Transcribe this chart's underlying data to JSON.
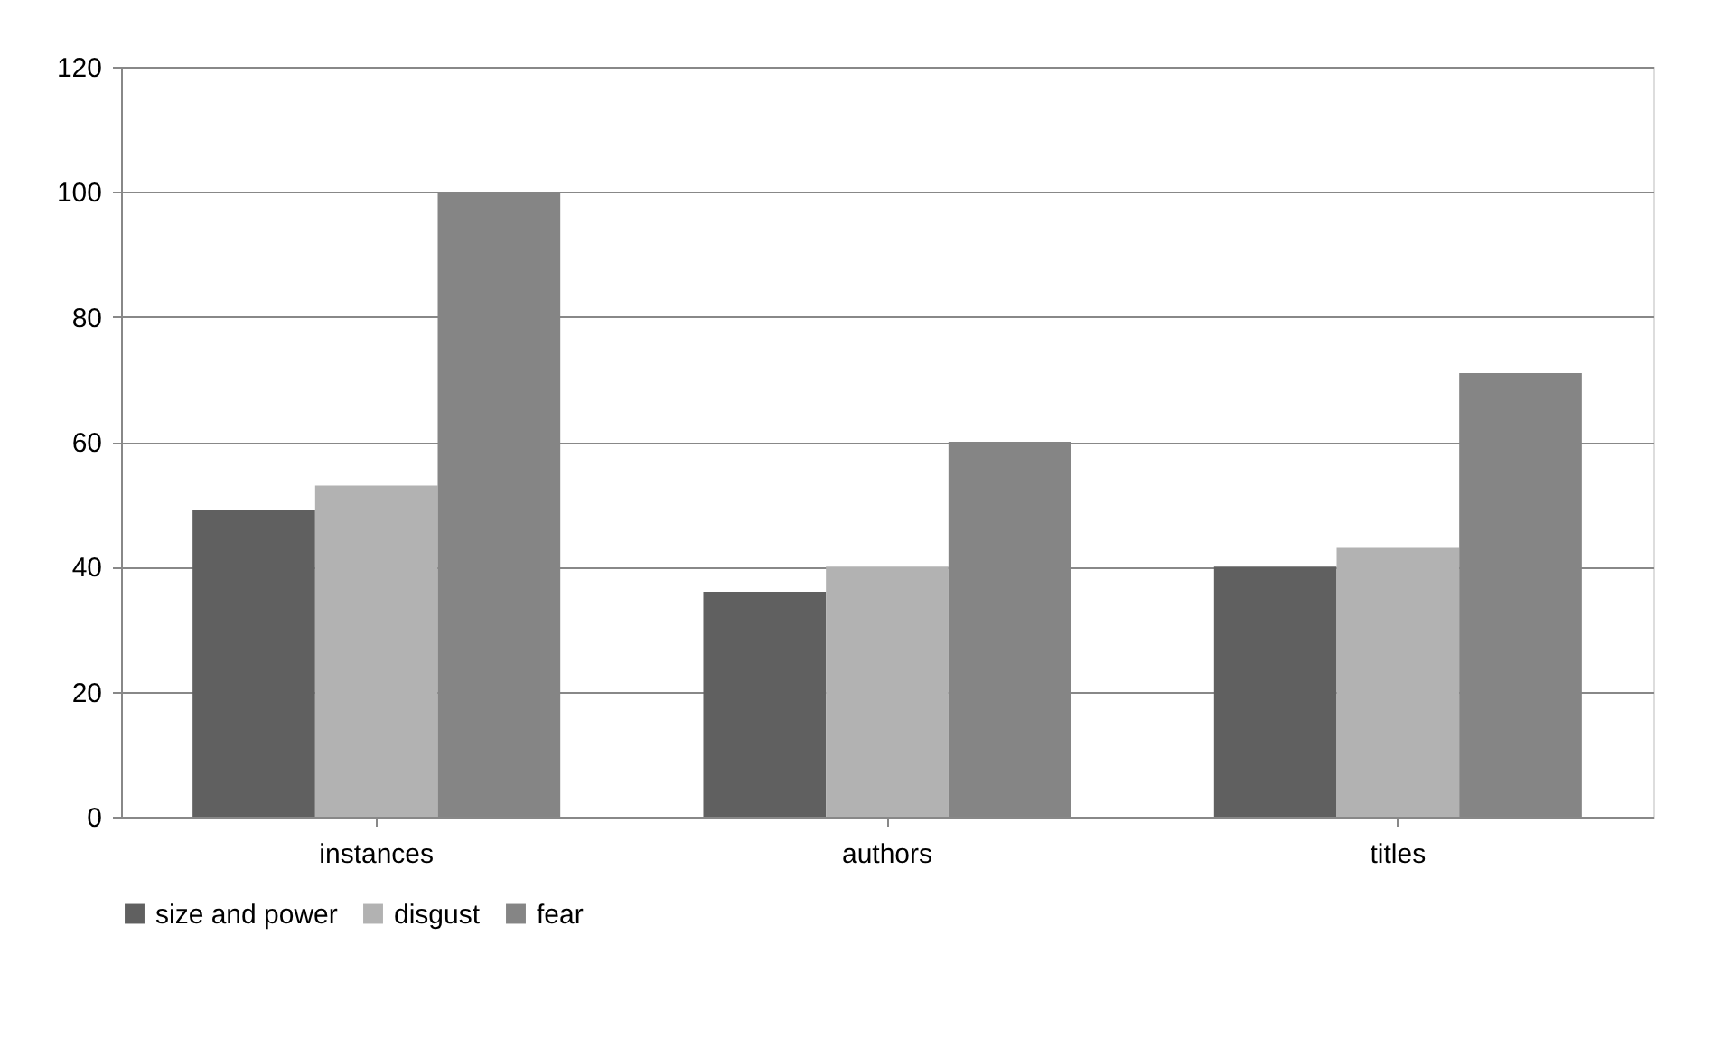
{
  "chart_data": {
    "type": "bar",
    "categories": [
      "instances",
      "authors",
      "titles"
    ],
    "series": [
      {
        "name": "size and power",
        "color": "#606060",
        "values": [
          49,
          36,
          40
        ]
      },
      {
        "name": "disgust",
        "color": "#b2b2b2",
        "values": [
          53,
          40,
          43
        ]
      },
      {
        "name": "fear",
        "color": "#858585",
        "values": [
          100,
          60,
          71
        ]
      }
    ],
    "ylim": [
      0,
      120
    ],
    "yticks": [
      0,
      20,
      40,
      60,
      80,
      100,
      120
    ],
    "grid": "y",
    "legend": "bottom"
  }
}
